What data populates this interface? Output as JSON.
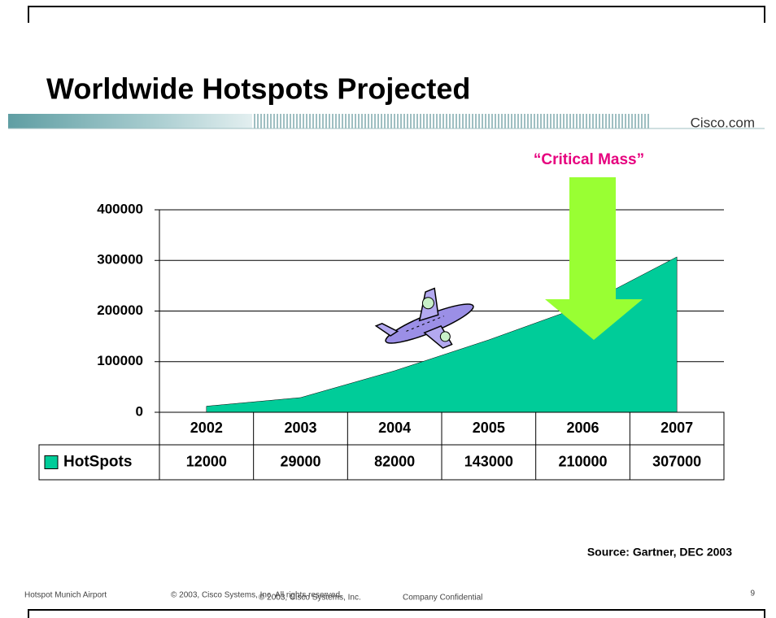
{
  "header": {
    "title": "Worldwide Hotspots Projected",
    "brand": "Cisco.com"
  },
  "chart_data": {
    "type": "area",
    "annotation": "“Critical Mass”",
    "categories": [
      "2002",
      "2003",
      "2004",
      "2005",
      "2006",
      "2007"
    ],
    "series": [
      {
        "name": "HotSpots",
        "color": "#00cc99",
        "values": [
          12000,
          29000,
          82000,
          143000,
          210000,
          307000
        ]
      }
    ],
    "ylim": [
      0,
      400000
    ],
    "yticks": [
      0,
      100000,
      200000,
      300000,
      400000
    ],
    "grid": true,
    "source": "Source:  Gartner, DEC 2003"
  },
  "footer": {
    "left": "Hotspot Munich Airport",
    "copyright": "© 2003, Cisco Systems, Inc. All rights reserved.",
    "copyright2": "© 2003, Cisco Systems, Inc.",
    "confidential": "Company Confidential",
    "page": "9"
  }
}
